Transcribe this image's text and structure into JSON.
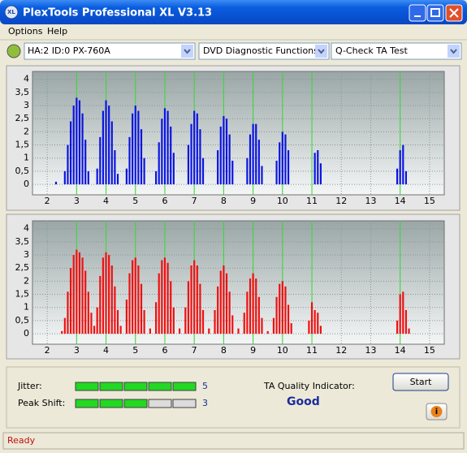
{
  "window": {
    "title": "PlexTools Professional XL V3.13"
  },
  "menu": [
    "Options",
    "Help"
  ],
  "toolbar": {
    "drive": "HA:2 ID:0  PX-760A",
    "function": "DVD Diagnostic Functions",
    "test": "Q-Check TA Test"
  },
  "chart_data": [
    {
      "type": "bar",
      "color": "#0a14e0",
      "marker_color": "#33dd33",
      "xlim": [
        1.5,
        15.5
      ],
      "ylim": [
        -0.4,
        4.3
      ],
      "xticks": [
        2,
        3,
        4,
        5,
        6,
        7,
        8,
        9,
        10,
        11,
        12,
        13,
        14,
        15
      ],
      "yticks": [
        0,
        {
          "value": 0.5,
          "label": "0,5"
        },
        1,
        {
          "value": 1.5,
          "label": "1,5"
        },
        2,
        {
          "value": 2.5,
          "label": "2,5"
        },
        3,
        {
          "value": 3.5,
          "label": "3,5"
        },
        4
      ],
      "grid": true,
      "markers": [
        3,
        4,
        5,
        6,
        7,
        8,
        9,
        10,
        11,
        14
      ],
      "x": [
        2.3,
        2.6,
        2.7,
        2.8,
        2.9,
        3.0,
        3.1,
        3.2,
        3.3,
        3.4,
        3.7,
        3.8,
        3.9,
        4.0,
        4.1,
        4.2,
        4.3,
        4.4,
        4.7,
        4.8,
        4.9,
        5.0,
        5.1,
        5.2,
        5.3,
        5.7,
        5.8,
        5.9,
        6.0,
        6.1,
        6.2,
        6.3,
        6.8,
        6.9,
        7.0,
        7.1,
        7.2,
        7.3,
        7.8,
        7.9,
        8.0,
        8.1,
        8.2,
        8.3,
        8.8,
        8.9,
        9.0,
        9.1,
        9.2,
        9.3,
        9.8,
        9.9,
        10.0,
        10.1,
        10.2,
        11.1,
        11.2,
        11.3,
        13.9,
        14.0,
        14.1,
        14.2
      ],
      "values": [
        0.1,
        0.5,
        1.5,
        2.4,
        3.0,
        3.3,
        3.2,
        2.7,
        1.7,
        0.5,
        0.6,
        1.8,
        2.8,
        3.2,
        3.0,
        2.4,
        1.3,
        0.4,
        0.6,
        1.8,
        2.7,
        3.0,
        2.8,
        2.1,
        1.0,
        0.5,
        1.6,
        2.5,
        2.9,
        2.8,
        2.2,
        1.2,
        1.5,
        2.3,
        2.8,
        2.7,
        2.1,
        1.0,
        1.3,
        2.2,
        2.6,
        2.5,
        1.9,
        0.9,
        1.0,
        1.9,
        2.3,
        2.3,
        1.7,
        0.7,
        0.9,
        1.6,
        2.0,
        1.9,
        1.3,
        1.2,
        1.3,
        0.8,
        0.6,
        1.3,
        1.5,
        0.5
      ]
    },
    {
      "type": "bar",
      "color": "#ee1010",
      "marker_color": "#33dd33",
      "xlim": [
        1.5,
        15.5
      ],
      "ylim": [
        -0.4,
        4.3
      ],
      "xticks": [
        2,
        3,
        4,
        5,
        6,
        7,
        8,
        9,
        10,
        11,
        12,
        13,
        14,
        15
      ],
      "yticks": [
        0,
        {
          "value": 0.5,
          "label": "0,5"
        },
        1,
        {
          "value": 1.5,
          "label": "1,5"
        },
        2,
        {
          "value": 2.5,
          "label": "2,5"
        },
        3,
        {
          "value": 3.5,
          "label": "3,5"
        },
        4
      ],
      "grid": true,
      "markers": [
        3,
        4,
        5,
        6,
        7,
        8,
        9,
        10,
        11,
        14
      ],
      "x": [
        2.5,
        2.6,
        2.7,
        2.8,
        2.9,
        3.0,
        3.1,
        3.2,
        3.3,
        3.4,
        3.5,
        3.6,
        3.7,
        3.8,
        3.9,
        4.0,
        4.1,
        4.2,
        4.3,
        4.4,
        4.5,
        4.7,
        4.8,
        4.9,
        5.0,
        5.1,
        5.2,
        5.3,
        5.5,
        5.7,
        5.8,
        5.9,
        6.0,
        6.1,
        6.2,
        6.3,
        6.5,
        6.7,
        6.8,
        6.9,
        7.0,
        7.1,
        7.2,
        7.3,
        7.5,
        7.7,
        7.8,
        7.9,
        8.0,
        8.1,
        8.2,
        8.3,
        8.5,
        8.7,
        8.8,
        8.9,
        9.0,
        9.1,
        9.2,
        9.3,
        9.5,
        9.7,
        9.8,
        9.9,
        10.0,
        10.1,
        10.2,
        10.3,
        10.9,
        11.0,
        11.1,
        11.2,
        11.3,
        13.9,
        14.0,
        14.1,
        14.2,
        14.3
      ],
      "values": [
        0.1,
        0.6,
        1.6,
        2.5,
        3.0,
        3.2,
        3.1,
        2.9,
        2.4,
        1.6,
        0.8,
        0.3,
        1.0,
        2.2,
        2.9,
        3.1,
        3.0,
        2.6,
        1.8,
        0.9,
        0.3,
        1.3,
        2.3,
        2.8,
        2.9,
        2.6,
        1.9,
        0.9,
        0.2,
        1.2,
        2.3,
        2.8,
        2.9,
        2.7,
        2.0,
        1.0,
        0.2,
        1.0,
        2.0,
        2.6,
        2.8,
        2.6,
        1.9,
        0.9,
        0.2,
        0.9,
        1.8,
        2.4,
        2.6,
        2.3,
        1.6,
        0.7,
        0.2,
        0.8,
        1.6,
        2.1,
        2.3,
        2.1,
        1.4,
        0.6,
        0.1,
        0.6,
        1.4,
        1.9,
        2.0,
        1.8,
        1.1,
        0.4,
        0.5,
        1.2,
        0.9,
        0.8,
        0.3,
        0.5,
        1.5,
        1.6,
        0.9,
        0.2
      ]
    }
  ],
  "jitter": {
    "label": "Jitter:",
    "value": 5
  },
  "peak_shift": {
    "label": "Peak Shift:",
    "value": 3
  },
  "ta_quality": {
    "label": "TA Quality Indicator:",
    "value": "Good"
  },
  "start_button": "Start",
  "status": "Ready"
}
